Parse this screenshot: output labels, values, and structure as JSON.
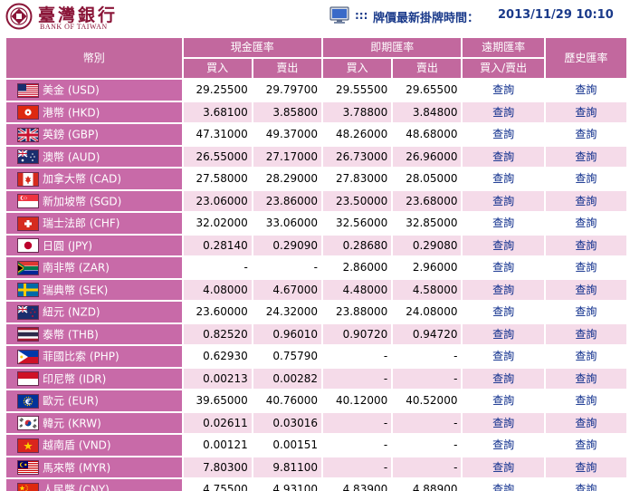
{
  "bank": {
    "name_cn": "臺灣銀行",
    "name_en": "BANK OF TAIWAN"
  },
  "header": {
    "dots": ":::",
    "label": "牌價最新掛牌時間：",
    "time": "2013/11/29 10:10"
  },
  "columns": {
    "currency": "幣別",
    "cash": "現金匯率",
    "spot": "即期匯率",
    "forward": "遠期匯率",
    "history": "歷史匯率",
    "buy": "買入",
    "sell": "賣出",
    "buy_sell": "買入/賣出"
  },
  "link_label": "查詢",
  "rows": [
    {
      "code": "us",
      "name": "美金 (USD)",
      "cash_buy": "29.25500",
      "cash_sell": "29.79700",
      "spot_buy": "29.55500",
      "spot_sell": "29.65500"
    },
    {
      "code": "hk",
      "name": "港幣 (HKD)",
      "cash_buy": "3.68100",
      "cash_sell": "3.85800",
      "spot_buy": "3.78800",
      "spot_sell": "3.84800"
    },
    {
      "code": "gb",
      "name": "英鎊 (GBP)",
      "cash_buy": "47.31000",
      "cash_sell": "49.37000",
      "spot_buy": "48.26000",
      "spot_sell": "48.68000"
    },
    {
      "code": "au",
      "name": "澳幣 (AUD)",
      "cash_buy": "26.55000",
      "cash_sell": "27.17000",
      "spot_buy": "26.73000",
      "spot_sell": "26.96000"
    },
    {
      "code": "ca",
      "name": "加拿大幣 (CAD)",
      "cash_buy": "27.58000",
      "cash_sell": "28.29000",
      "spot_buy": "27.83000",
      "spot_sell": "28.05000"
    },
    {
      "code": "sg",
      "name": "新加坡幣 (SGD)",
      "cash_buy": "23.06000",
      "cash_sell": "23.86000",
      "spot_buy": "23.50000",
      "spot_sell": "23.68000"
    },
    {
      "code": "ch",
      "name": "瑞士法郎 (CHF)",
      "cash_buy": "32.02000",
      "cash_sell": "33.06000",
      "spot_buy": "32.56000",
      "spot_sell": "32.85000"
    },
    {
      "code": "jp",
      "name": "日圓 (JPY)",
      "cash_buy": "0.28140",
      "cash_sell": "0.29090",
      "spot_buy": "0.28680",
      "spot_sell": "0.29080"
    },
    {
      "code": "za",
      "name": "南非幣 (ZAR)",
      "cash_buy": "-",
      "cash_sell": "-",
      "spot_buy": "2.86000",
      "spot_sell": "2.96000"
    },
    {
      "code": "se",
      "name": "瑞典幣 (SEK)",
      "cash_buy": "4.08000",
      "cash_sell": "4.67000",
      "spot_buy": "4.48000",
      "spot_sell": "4.58000"
    },
    {
      "code": "nz",
      "name": "紐元 (NZD)",
      "cash_buy": "23.60000",
      "cash_sell": "24.32000",
      "spot_buy": "23.88000",
      "spot_sell": "24.08000"
    },
    {
      "code": "th",
      "name": "泰幣 (THB)",
      "cash_buy": "0.82520",
      "cash_sell": "0.96010",
      "spot_buy": "0.90720",
      "spot_sell": "0.94720"
    },
    {
      "code": "ph",
      "name": "菲國比索 (PHP)",
      "cash_buy": "0.62930",
      "cash_sell": "0.75790",
      "spot_buy": "-",
      "spot_sell": "-"
    },
    {
      "code": "id",
      "name": "印尼幣 (IDR)",
      "cash_buy": "0.00213",
      "cash_sell": "0.00282",
      "spot_buy": "-",
      "spot_sell": "-"
    },
    {
      "code": "eu",
      "name": "歐元 (EUR)",
      "cash_buy": "39.65000",
      "cash_sell": "40.76000",
      "spot_buy": "40.12000",
      "spot_sell": "40.52000"
    },
    {
      "code": "kr",
      "name": "韓元 (KRW)",
      "cash_buy": "0.02611",
      "cash_sell": "0.03016",
      "spot_buy": "-",
      "spot_sell": "-"
    },
    {
      "code": "vn",
      "name": "越南盾 (VND)",
      "cash_buy": "0.00121",
      "cash_sell": "0.00151",
      "spot_buy": "-",
      "spot_sell": "-"
    },
    {
      "code": "my",
      "name": "馬來幣 (MYR)",
      "cash_buy": "7.80300",
      "cash_sell": "9.81100",
      "spot_buy": "-",
      "spot_sell": "-"
    },
    {
      "code": "cn",
      "name": "人民幣 (CNY)",
      "cash_buy": "4.75500",
      "cash_sell": "4.93100",
      "spot_buy": "4.83900",
      "spot_sell": "4.88900"
    }
  ]
}
